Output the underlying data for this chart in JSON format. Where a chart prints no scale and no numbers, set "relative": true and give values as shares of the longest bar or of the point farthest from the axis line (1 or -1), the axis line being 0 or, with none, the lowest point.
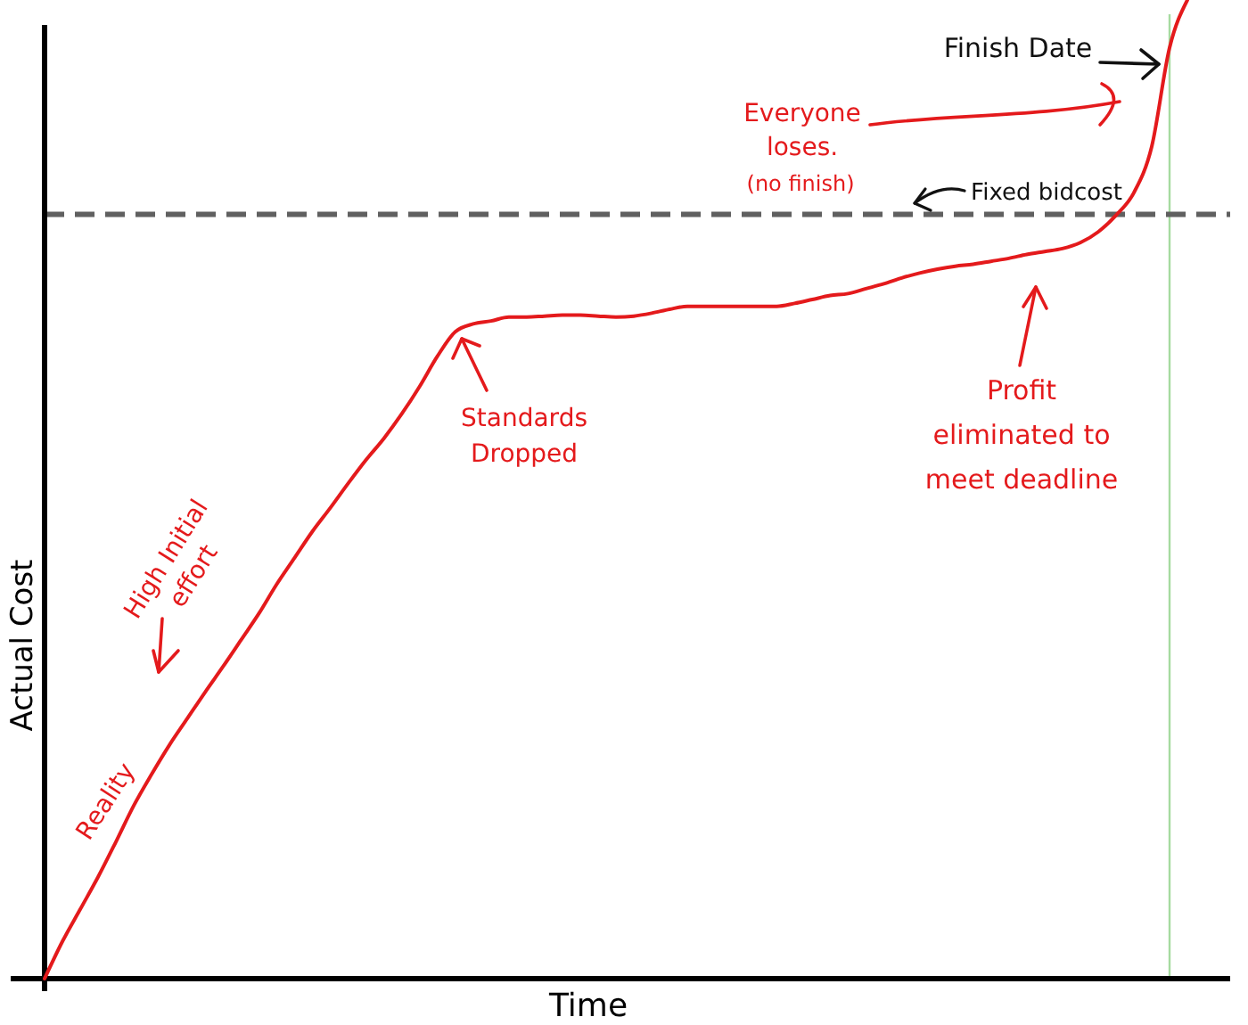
{
  "chart_data": {
    "type": "line",
    "xlabel": "Time",
    "ylabel": "Actual Cost",
    "relative": true,
    "categories": [
      null,
      null,
      null,
      null,
      null,
      null,
      null,
      null,
      null,
      null,
      null,
      null,
      null,
      null,
      null,
      null,
      null,
      null,
      null,
      null,
      null,
      null,
      null,
      null,
      null,
      null,
      null,
      null,
      null,
      null,
      null,
      null,
      null,
      null,
      null,
      null,
      null,
      null,
      null,
      null,
      null,
      null,
      null,
      null,
      null,
      null,
      null,
      null,
      null,
      null,
      null,
      null,
      null,
      null,
      null,
      null,
      null,
      null,
      null,
      null,
      null,
      null,
      null,
      null,
      null
    ],
    "series": [
      {
        "name": "Reality",
        "color": "#e41a1c",
        "values": [
          0,
          0.038,
          0.071,
          0.104,
          0.14,
          0.177,
          0.209,
          0.239,
          0.266,
          0.293,
          0.319,
          0.346,
          0.373,
          0.403,
          0.43,
          0.457,
          0.481,
          0.506,
          0.53,
          0.552,
          0.577,
          0.605,
          0.636,
          0.661,
          0.669,
          0.672,
          0.676,
          0.676,
          0.677,
          0.678,
          0.678,
          0.677,
          0.676,
          0.677,
          0.68,
          0.684,
          0.687,
          0.687,
          0.687,
          0.687,
          0.687,
          0.687,
          0.69,
          0.694,
          0.698,
          0.7,
          0.705,
          0.71,
          0.716,
          0.721,
          0.725,
          0.728,
          0.73,
          0.733,
          0.736,
          0.74,
          0.743,
          0.746,
          0.752,
          0.763,
          0.78,
          0.803,
          0.85,
          0.951,
          1
        ]
      }
    ],
    "ref_lines": [
      {
        "axis": "y",
        "value": 0.781,
        "label": "Fixed bidcost",
        "color": "#606060",
        "line_style": "dashed"
      }
    ],
    "annotations": [
      "Finish Date",
      "Everyone loses.",
      "(no finish)",
      "Standards Dropped",
      "Profit eliminated to meet deadline",
      "High Initial effort"
    ]
  }
}
